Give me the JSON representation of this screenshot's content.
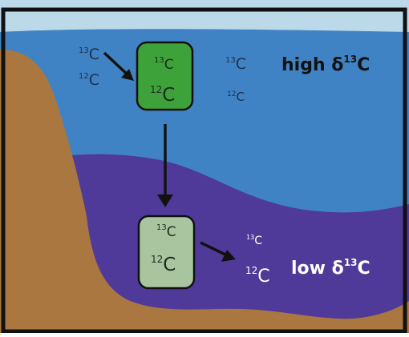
{
  "colors": {
    "sky": "#bcd9ea",
    "surface_water": "#3f83c4",
    "deep_water": "#4f3a99",
    "sediment": "#a9773f",
    "frame": "#111111",
    "upper_box": "#3ea23a",
    "lower_box": "#a9c5a0",
    "arrow": "#111111"
  },
  "surface": {
    "isotope_13c": {
      "sup": "13",
      "base": "C"
    },
    "isotope_12c": {
      "sup": "12",
      "base": "C"
    },
    "box": {
      "isotope_13c": {
        "sup": "13",
        "base": "C"
      },
      "isotope_12c": {
        "sup": "12",
        "base": "C"
      }
    },
    "right_13c": {
      "sup": "13",
      "base": "C"
    },
    "right_12c": {
      "sup": "12",
      "base": "C"
    },
    "label": {
      "prefix": "high δ",
      "sup": "13",
      "base": "C"
    }
  },
  "deep": {
    "box": {
      "isotope_13c": {
        "sup": "13",
        "base": "C"
      },
      "isotope_12c": {
        "sup": "12",
        "base": "C"
      }
    },
    "right_13c": {
      "sup": "13",
      "base": "C"
    },
    "right_12c": {
      "sup": "12",
      "base": "C"
    },
    "label": {
      "prefix": "low δ",
      "sup": "13",
      "base": "C"
    }
  }
}
